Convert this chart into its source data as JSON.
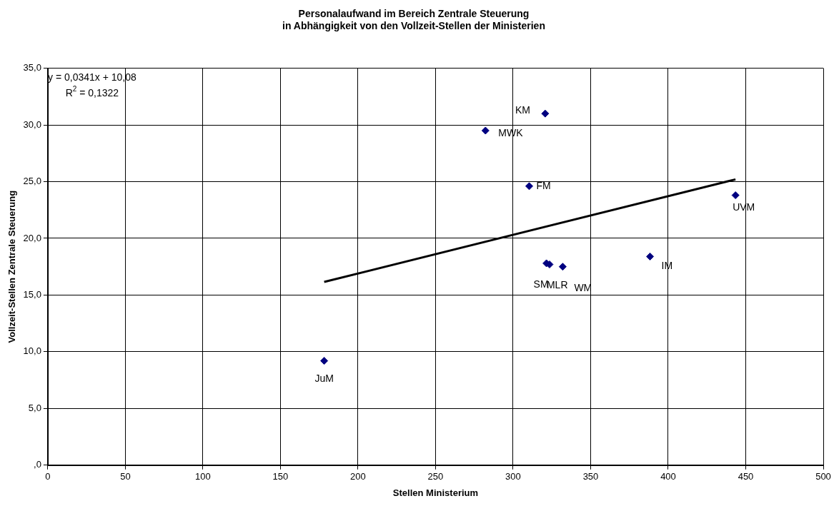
{
  "chart_data": {
    "type": "scatter",
    "title": "Personalaufwand im Bereich Zentrale Steuerung\nin Abhängigkeit von den Vollzeit-Stellen der Ministerien",
    "xlabel": "Stellen Ministerium",
    "ylabel": "Vollzeit-Stellen Zentrale Steuerung",
    "x": [
      178.2,
      282.2,
      310.4,
      320.7,
      321.5,
      323.5,
      332,
      388.3,
      443.4
    ],
    "series": [
      {
        "color": "#000080",
        "values": [
          9.2,
          29.5,
          24.6,
          31.0,
          17.8,
          17.7,
          17.5,
          18.4,
          23.8
        ]
      },
      {
        "type": "line",
        "marker": "none",
        "color": "#000000",
        "x": [
          178.2,
          443.4
        ],
        "values": [
          16.16,
          25.2
        ]
      }
    ],
    "annotations": [
      {
        "text": "JuM",
        "x": 178.2,
        "y": 9.2
      },
      {
        "text": "MWK",
        "x": 282.2,
        "y": 29.5
      },
      {
        "text": "FM",
        "x": 310.4,
        "y": 24.6
      },
      {
        "text": "KM",
        "x": 320.7,
        "y": 31.0
      },
      {
        "text": "SM",
        "x": 321.5,
        "y": 17.8
      },
      {
        "text": "MLR",
        "x": 323.5,
        "y": 17.7
      },
      {
        "text": "WM",
        "x": 332,
        "y": 17.5
      },
      {
        "text": "IM",
        "x": 388.3,
        "y": 18.4
      },
      {
        "text": "UVM",
        "x": 443.4,
        "y": 23.8
      },
      "y = 0,0341x + 10,08",
      "R$^{2}$ = 0,1322"
    ],
    "xlim": [
      0,
      500
    ],
    "xticks": [
      0,
      50,
      100,
      150,
      200,
      250,
      300,
      350,
      400,
      450,
      500
    ],
    "ylim": [
      0,
      35
    ],
    "yticks": [
      {
        "value": 0,
        "label": ",0"
      },
      {
        "value": 5,
        "label": "5,0"
      },
      {
        "value": 10,
        "label": "10,0"
      },
      {
        "value": 15,
        "label": "15,0"
      },
      {
        "value": 20,
        "label": "20,0"
      },
      {
        "value": 25,
        "label": "25,0"
      },
      {
        "value": 30,
        "label": "30,0"
      },
      {
        "value": 35,
        "label": "35,0"
      }
    ],
    "grid": true,
    "legend": false,
    "marker": "diamond"
  }
}
